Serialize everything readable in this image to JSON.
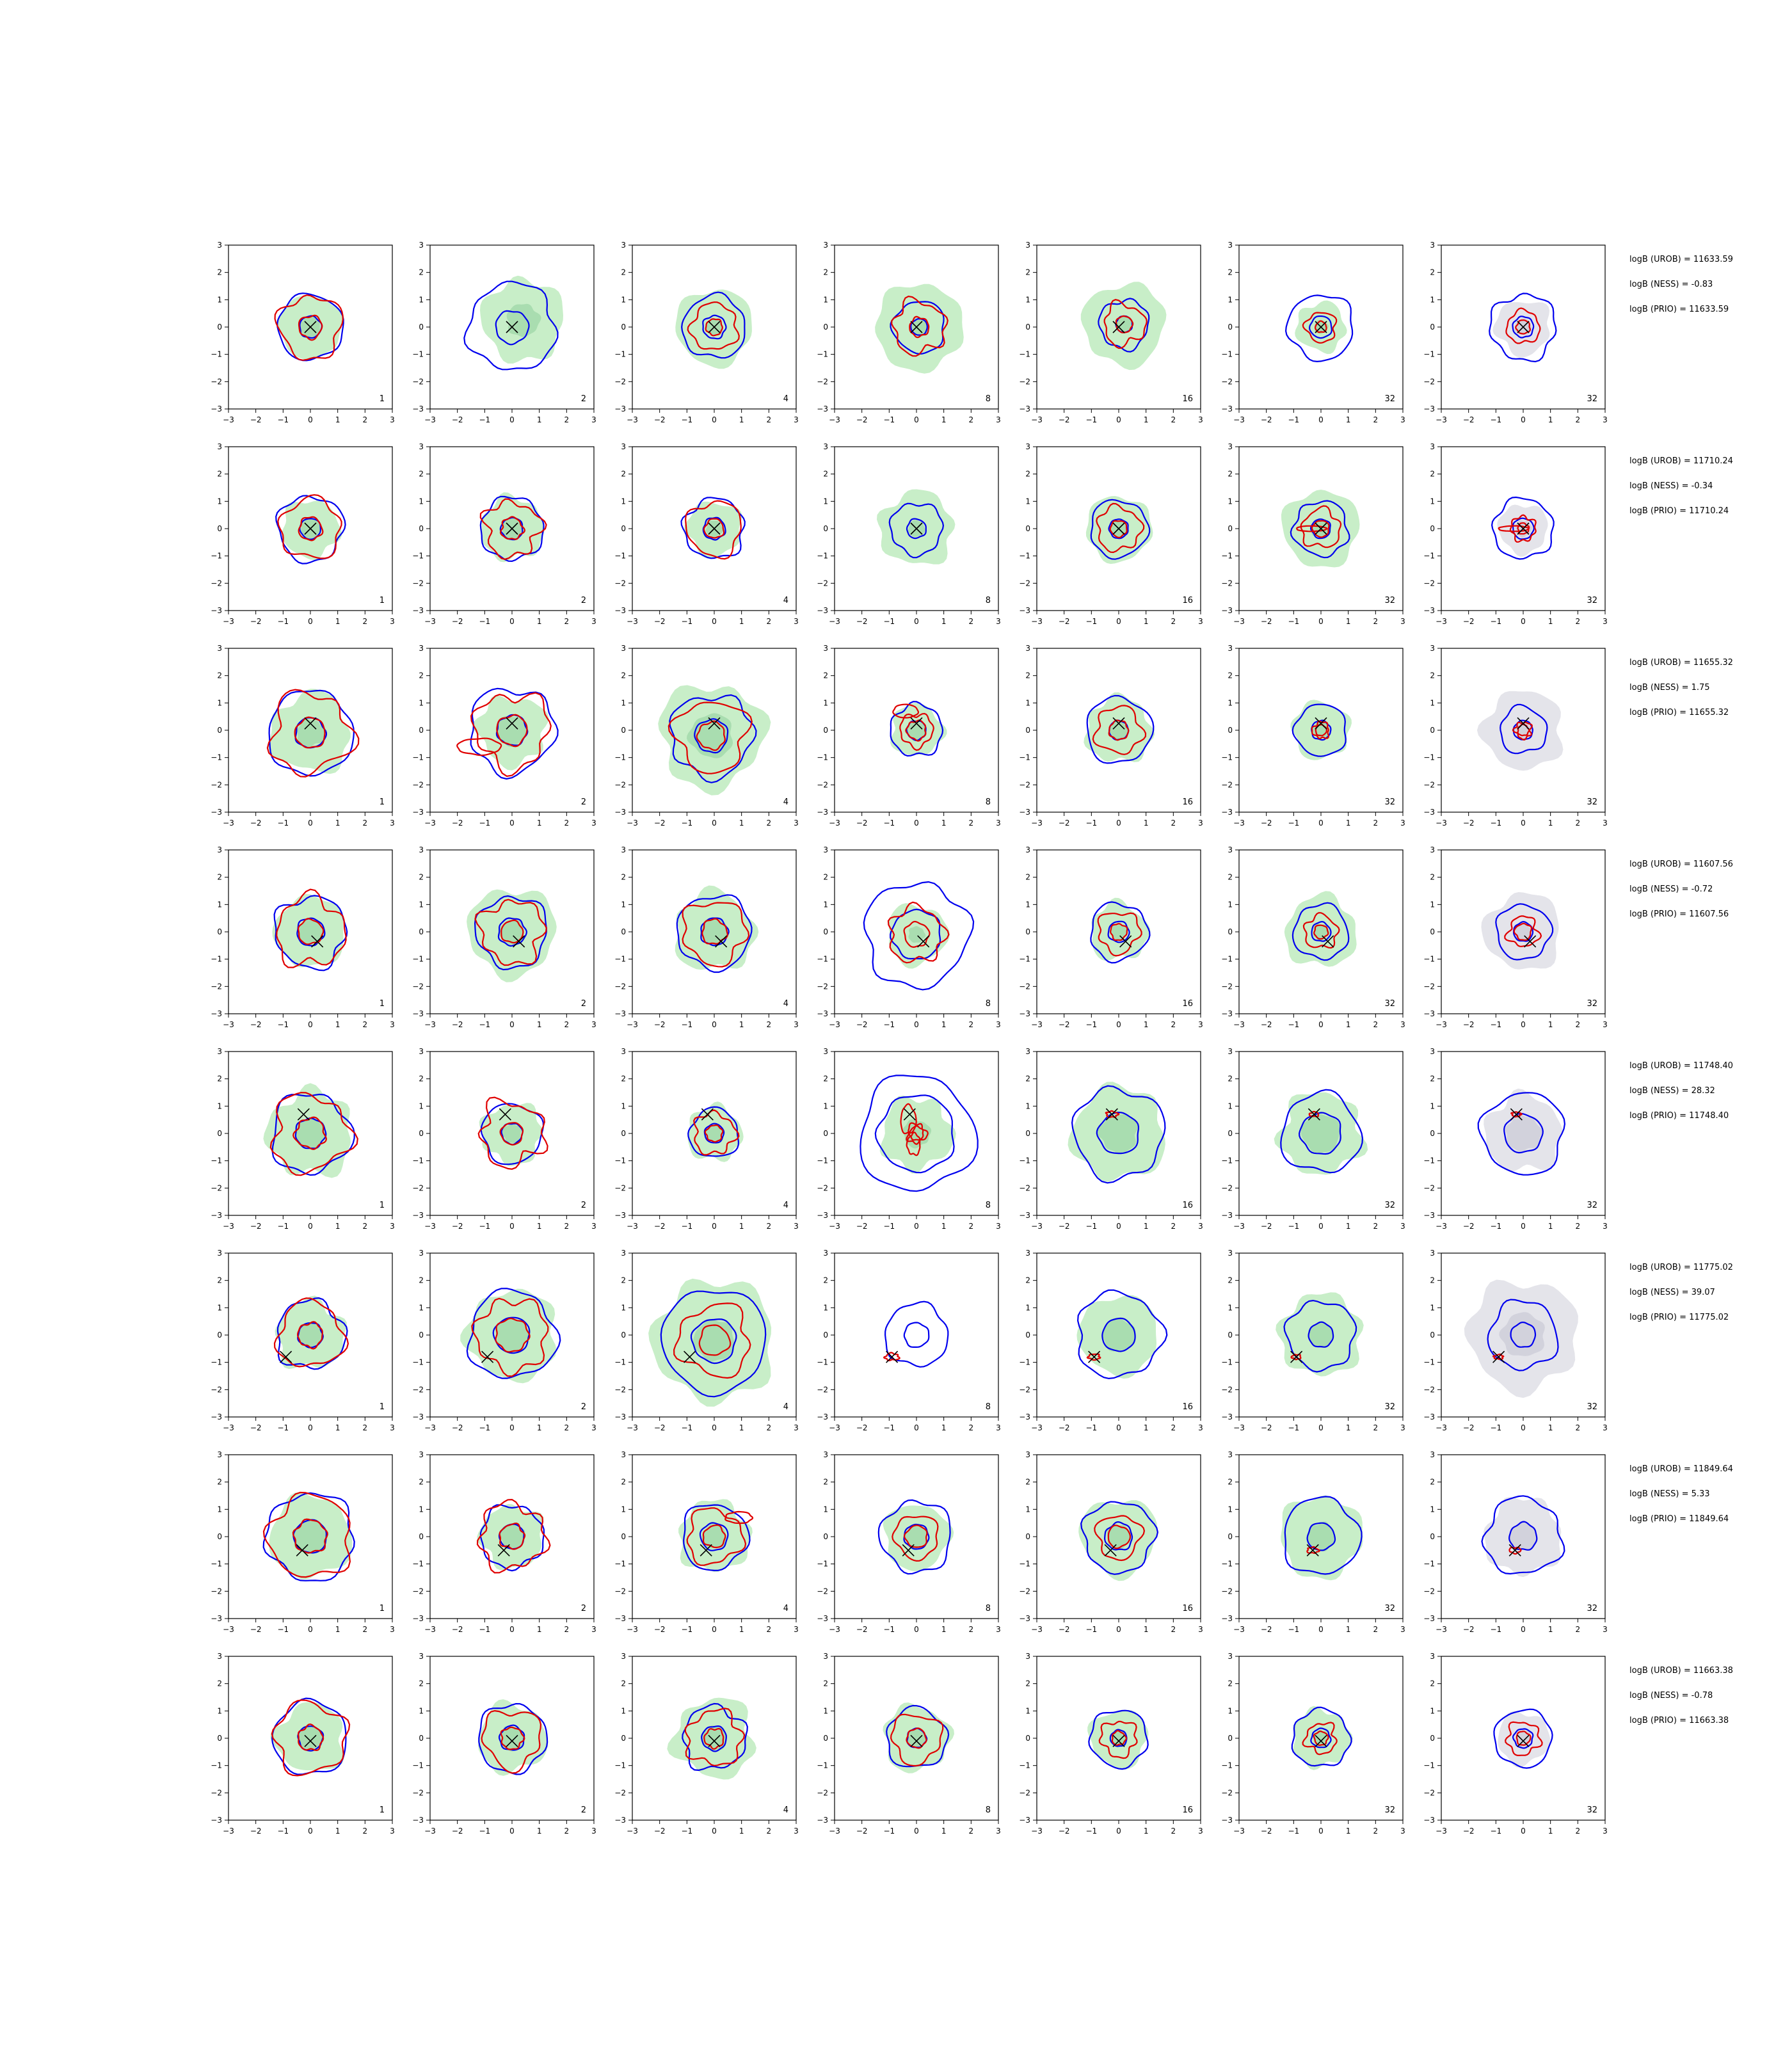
{
  "chart_data": {
    "type": "contour-grid",
    "rows": 8,
    "cols": 7,
    "xlim": [
      -3,
      3
    ],
    "ylim": [
      -3,
      3
    ],
    "ticks": [
      -3,
      -2,
      -1,
      0,
      1,
      2,
      3
    ],
    "tick_labels": [
      "−3",
      "−2",
      "−1",
      "0",
      "1",
      "2",
      "3"
    ],
    "panel_labels": [
      "1",
      "2",
      "4",
      "8",
      "16",
      "32",
      "32"
    ],
    "grid": false,
    "colors": {
      "fill_green": "#c8eec8",
      "fill_green_dark": "#a9ddb0",
      "fill_gray": "#e4e4ea",
      "fill_gray_dark": "#d2d2dc",
      "line_blue": "#0000ee",
      "line_red": "#e00000",
      "marker": "#000000"
    },
    "marker_label": "×",
    "rows_data": [
      {
        "truth": [
          0,
          0
        ],
        "logb": [
          "logB (UROB) = 11633.59",
          "logB (NESS) = -0.83",
          "logB (PRIO) = 11633.59"
        ],
        "panels": [
          {
            "fill": "green",
            "f": 1.15,
            "fi": 0.38,
            "b": [
              1.2,
              0.4
            ],
            "r": [
              1.15,
              0.42
            ],
            "c": [
              0,
              0
            ]
          },
          {
            "fill": "green",
            "f": 1.5,
            "fi": 0.6,
            "c": [
              0.4,
              0.25
            ],
            "b": [
              1.6,
              0.6
            ],
            "r": [],
            "bc": [
              0,
              0
            ]
          },
          {
            "fill": "green",
            "f": 1.4,
            "fi": 0.3,
            "b": [
              1.15,
              0.42
            ],
            "r": [
              0.85,
              0.3
            ],
            "c": [
              0,
              0
            ]
          },
          {
            "fill": "green",
            "f": 1.6,
            "fi": 0.35,
            "b": [
              0.95,
              0.3
            ],
            "r": [
              0.95,
              0.35
            ],
            "c": [
              0.1,
              0
            ]
          },
          {
            "fill": "green",
            "f": 1.5,
            "fi": 0.3,
            "b": [
              0.9,
              0.3
            ],
            "r": [
              0.75,
              0.3
            ],
            "c": [
              0.2,
              0.1
            ]
          },
          {
            "fill": "green",
            "f": 0.9,
            "fi": 0.25,
            "b": [
              1.2,
              0.4
            ],
            "r": [
              0.55,
              0.2
            ],
            "c": [
              0,
              0
            ]
          },
          {
            "fill": "gray",
            "f": 1.0,
            "fi": 0.3,
            "b": [
              1.2,
              0.38
            ],
            "r": [
              0.6,
              0.25
            ],
            "c": [
              0,
              0
            ]
          }
        ]
      },
      {
        "truth": [
          0,
          0
        ],
        "logb": [
          "logB (UROB) = 11710.24",
          "logB (NESS) = -0.34",
          "logB (PRIO) = 11710.24"
        ],
        "panels": [
          {
            "fill": "green",
            "f": 1.05,
            "fi": 0.38,
            "b": [
              1.2,
              0.38
            ],
            "r": [
              1.1,
              0.42
            ],
            "c": [
              0,
              0
            ]
          },
          {
            "fill": "green",
            "f": 1.15,
            "fi": 0.4,
            "b": [
              1.15,
              0.4
            ],
            "r": [
              1.0,
              0.4
            ],
            "c": [
              0,
              0
            ]
          },
          {
            "fill": "green",
            "f": 1.0,
            "fi": 0.3,
            "b": [
              1.1,
              0.4
            ],
            "r": [
              1.0,
              0.35
            ],
            "c": [
              0,
              0
            ]
          },
          {
            "fill": "green",
            "f": 1.35,
            "fi": 0.3,
            "b": [
              0.95,
              0.35
            ],
            "r": [],
            "c": [
              0,
              0
            ]
          },
          {
            "fill": "green",
            "f": 1.2,
            "fi": 0.3,
            "b": [
              1.05,
              0.35
            ],
            "r": [
              0.8,
              0.3
            ],
            "c": [
              0,
              0
            ]
          },
          {
            "fill": "green",
            "f": 1.4,
            "fi": 0.35,
            "b": [
              1.0,
              0.35
            ],
            "r": [
              0.7,
              0.3
            ],
            "c": [
              0,
              0
            ],
            "streak": true
          },
          {
            "fill": "gray",
            "f": 0.9,
            "fi": 0.3,
            "b": [
              1.1,
              0.38
            ],
            "r": [
              0.45,
              0.2
            ],
            "c": [
              0,
              0
            ],
            "streak": true
          }
        ]
      },
      {
        "truth": [
          0,
          0.25
        ],
        "logb": [
          "logB (UROB) = 11655.32",
          "logB (NESS) = 1.75",
          "logB (PRIO) = 11655.32"
        ],
        "panels": [
          {
            "fill": "green",
            "f": 1.45,
            "fi": 0.5,
            "b": [
              1.55,
              0.55
            ],
            "r": [
              1.45,
              0.55
            ],
            "c": [
              0,
              -0.1
            ]
          },
          {
            "fill": "green",
            "f": 1.25,
            "fi": 0.55,
            "b": [
              1.55,
              0.55
            ],
            "r": [
              1.35,
              0.55
            ],
            "c": [
              0,
              0
            ],
            "tail": true
          },
          {
            "fill": "green",
            "f": 1.9,
            "fi": 0.8,
            "b": [
              1.5,
              0.6
            ],
            "r": [
              1.3,
              0.5
            ],
            "c": [
              -0.1,
              -0.2
            ]
          },
          {
            "fill": "green",
            "f": 0.95,
            "fi": 0.35,
            "b": [
              0.95,
              0.35
            ],
            "r": [
              0.6,
              0.35
            ],
            "c": [
              0,
              0
            ],
            "loop": true
          },
          {
            "fill": "green",
            "f": 1.2,
            "fi": 0.35,
            "b": [
              1.2,
              0.35
            ],
            "r": [
              0.85,
              0.35
            ],
            "c": [
              0,
              0
            ]
          },
          {
            "fill": "green",
            "f": 1.05,
            "fi": 0.3,
            "b": [
              0.95,
              0.35
            ],
            "r": [
              0.3,
              0.2
            ],
            "c": [
              0,
              0
            ]
          },
          {
            "fill": "gray",
            "f": 1.45,
            "fi": 0.3,
            "b": [
              0.85,
              0.35
            ],
            "r": [
              0.3,
              0.2
            ],
            "c": [
              0,
              0
            ]
          }
        ]
      },
      {
        "truth": [
          0.25,
          -0.35
        ],
        "logb": [
          "logB (UROB) = 11607.56",
          "logB (NESS) = -0.72",
          "logB (PRIO) = 11607.56"
        ],
        "panels": [
          {
            "fill": "green",
            "f": 1.3,
            "fi": 0.45,
            "b": [
              1.3,
              0.5
            ],
            "r": [
              1.25,
              0.45
            ],
            "c": [
              0,
              0
            ]
          },
          {
            "fill": "green",
            "f": 1.6,
            "fi": 0.45,
            "b": [
              1.3,
              0.5
            ],
            "r": [
              1.15,
              0.4
            ],
            "c": [
              0,
              0
            ]
          },
          {
            "fill": "green",
            "f": 1.45,
            "fi": 0.5,
            "b": [
              1.35,
              0.5
            ],
            "r": [
              1.15,
              0.45
            ],
            "c": [
              0,
              0
            ]
          },
          {
            "fill": "green",
            "f": 1.1,
            "fi": 0.3,
            "b": [
              1.9,
              0.9
            ],
            "r": [
              1.0,
              0.45
            ],
            "c": [
              0,
              -0.1
            ]
          },
          {
            "fill": "green",
            "f": 1.05,
            "fi": 0.3,
            "b": [
              1.05,
              0.38
            ],
            "r": [
              0.75,
              0.3
            ],
            "c": [
              0,
              0
            ]
          },
          {
            "fill": "green",
            "f": 1.3,
            "fi": 0.3,
            "b": [
              1.0,
              0.35
            ],
            "r": [
              0.6,
              0.25
            ],
            "c": [
              0,
              0
            ]
          },
          {
            "fill": "gray",
            "f": 1.4,
            "fi": 0.3,
            "b": [
              1.0,
              0.35
            ],
            "r": [
              0.55,
              0.3
            ],
            "c": [
              0,
              0
            ]
          }
        ]
      },
      {
        "truth": [
          -0.25,
          0.7
        ],
        "logb": [
          "logB (UROB) = 11748.40",
          "logB (NESS) = 28.32",
          "logB (PRIO) = 11748.40"
        ],
        "panels": [
          {
            "fill": "green",
            "f": 1.55,
            "fi": 0.55,
            "b": [
              1.45,
              0.55
            ],
            "r": [
              1.4,
              0.55
            ],
            "c": [
              0,
              0
            ]
          },
          {
            "fill": "green",
            "f": 1.1,
            "fi": 0.35,
            "b": [
              1.1,
              0.38
            ],
            "r": [
              1.15,
              0.4
            ],
            "c": [
              0,
              0
            ]
          },
          {
            "fill": "green",
            "f": 1.0,
            "fi": 0.3,
            "b": [
              0.9,
              0.35
            ],
            "r": [
              0.75,
              0.3
            ],
            "c": [
              0,
              0
            ]
          },
          {
            "fill": "green",
            "f": 1.3,
            "fi": 0.5,
            "b": [
              2.1,
              1.4
            ],
            "r": [
              0.35,
              0.25
            ],
            "c": [
              0,
              0
            ],
            "redblob": true
          },
          {
            "fill": "green",
            "f": 1.7,
            "fi": 0.7,
            "b": [
              1.65,
              0.75
            ],
            "r": [
              0.15
            ],
            "c": [
              0,
              0
            ]
          },
          {
            "fill": "green",
            "f": 1.5,
            "fi": 0.7,
            "b": [
              1.45,
              0.75
            ],
            "r": [
              0.12
            ],
            "c": [
              0,
              0
            ]
          },
          {
            "fill": "gray",
            "f": 1.4,
            "fi": 0.65,
            "b": [
              1.5,
              0.7
            ],
            "r": [
              0.12
            ],
            "c": [
              0,
              0
            ]
          }
        ]
      },
      {
        "truth": [
          -0.9,
          -0.8
        ],
        "logb": [
          "logB (UROB) = 11775.02",
          "logB (NESS) = 39.07",
          "logB (PRIO) = 11775.02"
        ],
        "panels": [
          {
            "fill": "green",
            "f": 1.25,
            "fi": 0.45,
            "b": [
              1.25,
              0.45
            ],
            "r": [
              1.2,
              0.45
            ],
            "c": [
              0,
              0
            ]
          },
          {
            "fill": "green",
            "f": 1.65,
            "fi": 0.6,
            "b": [
              1.6,
              0.65
            ],
            "r": [
              1.3,
              0.6
            ],
            "c": [
              0,
              0
            ]
          },
          {
            "fill": "green",
            "f": 2.2,
            "fi": 0.75,
            "b": [
              1.9,
              0.8
            ],
            "r": [
              1.3,
              0.55
            ],
            "c": [
              0,
              -0.2
            ]
          },
          {
            "fill": "none",
            "f": 0,
            "fi": 0,
            "b": [
              1.15,
              0.45
            ],
            "r": [
              0.18
            ],
            "c": [
              0,
              0
            ]
          },
          {
            "fill": "green",
            "f": 1.45,
            "fi": 0.6,
            "b": [
              1.55,
              0.6
            ],
            "r": [
              0.15
            ],
            "c": [
              0,
              0
            ]
          },
          {
            "fill": "green",
            "f": 1.5,
            "fi": 0.45,
            "b": [
              1.25,
              0.45
            ],
            "r": [
              0.12
            ],
            "c": [
              0,
              0
            ]
          },
          {
            "fill": "gray",
            "f": 2.0,
            "fi": 0.8,
            "b": [
              1.25,
              0.45
            ],
            "r": [
              0.12
            ],
            "c": [
              0,
              0
            ]
          }
        ]
      },
      {
        "truth": [
          -0.3,
          -0.5
        ],
        "logb": [
          "logB (UROB) = 11849.64",
          "logB (NESS) = 5.33",
          "logB (PRIO) = 11849.64"
        ],
        "panels": [
          {
            "fill": "green",
            "f": 1.5,
            "fi": 0.6,
            "b": [
              1.6,
              0.6
            ],
            "r": [
              1.5,
              0.6
            ],
            "c": [
              0,
              0
            ]
          },
          {
            "fill": "green",
            "f": 1.15,
            "fi": 0.45,
            "b": [
              1.15,
              0.45
            ],
            "r": [
              1.2,
              0.45
            ],
            "c": [
              0,
              0
            ]
          },
          {
            "fill": "green",
            "f": 1.3,
            "fi": 0.45,
            "b": [
              1.2,
              0.5
            ],
            "r": [
              1.0,
              0.4
            ],
            "c": [
              0,
              0
            ],
            "ear": true
          },
          {
            "fill": "green",
            "f": 1.2,
            "fi": 0.4,
            "b": [
              1.3,
              0.45
            ],
            "r": [
              0.8,
              0.4
            ],
            "c": [
              0,
              0
            ]
          },
          {
            "fill": "green",
            "f": 1.4,
            "fi": 0.45,
            "b": [
              1.3,
              0.5
            ],
            "r": [
              0.8,
              0.4
            ],
            "c": [
              0,
              0
            ]
          },
          {
            "fill": "green",
            "f": 1.5,
            "fi": 0.5,
            "b": [
              1.4,
              0.5
            ],
            "r": [
              0.15
            ],
            "c": [
              0,
              0
            ]
          },
          {
            "fill": "gray",
            "f": 1.4,
            "fi": 0.5,
            "b": [
              1.4,
              0.5
            ],
            "r": [
              0.15
            ],
            "c": [
              0,
              0
            ]
          }
        ]
      },
      {
        "truth": [
          0,
          -0.1
        ],
        "logb": [
          "logB (UROB) = 11663.38",
          "logB (NESS) = -0.78",
          "logB (PRIO) = 11663.38"
        ],
        "panels": [
          {
            "fill": "green",
            "f": 1.25,
            "fi": 0.45,
            "b": [
              1.35,
              0.45
            ],
            "r": [
              1.3,
              0.45
            ],
            "c": [
              0,
              0
            ]
          },
          {
            "fill": "green",
            "f": 1.25,
            "fi": 0.45,
            "b": [
              1.25,
              0.45
            ],
            "r": [
              1.05,
              0.4
            ],
            "c": [
              0,
              0
            ]
          },
          {
            "fill": "green",
            "f": 1.45,
            "fi": 0.45,
            "b": [
              1.15,
              0.45
            ],
            "r": [
              1.0,
              0.35
            ],
            "c": [
              0,
              0
            ]
          },
          {
            "fill": "green",
            "f": 1.2,
            "fi": 0.35,
            "b": [
              1.1,
              0.35
            ],
            "r": [
              0.9,
              0.35
            ],
            "c": [
              0,
              0
            ]
          },
          {
            "fill": "green",
            "f": 1.05,
            "fi": 0.3,
            "b": [
              1.05,
              0.3
            ],
            "r": [
              0.65,
              0.25
            ],
            "c": [
              0,
              0
            ]
          },
          {
            "fill": "green",
            "f": 1.05,
            "fi": 0.3,
            "b": [
              1.05,
              0.35
            ],
            "r": [
              0.55,
              0.25
            ],
            "c": [
              0,
              0
            ]
          },
          {
            "fill": "gray",
            "f": 0.95,
            "fi": 0.3,
            "b": [
              1.05,
              0.35
            ],
            "r": [
              0.6,
              0.25
            ],
            "c": [
              0,
              0
            ]
          }
        ]
      }
    ]
  }
}
